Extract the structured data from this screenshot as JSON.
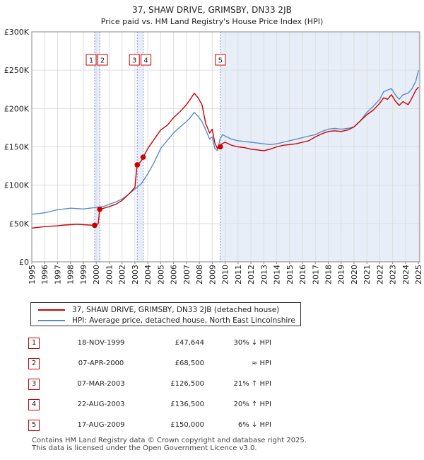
{
  "chart_data": {
    "type": "line",
    "title": "37, SHAW DRIVE, GRIMSBY, DN33 2JB",
    "subtitle": "Price paid vs. HM Land Registry's House Price Index (HPI)",
    "xlabel": "",
    "ylabel": "",
    "xlim": [
      1995,
      2025.1
    ],
    "ylim": [
      0,
      300000
    ],
    "y_ticks": [
      0,
      50000,
      100000,
      150000,
      200000,
      250000,
      300000
    ],
    "y_tick_labels": [
      "£0",
      "£50K",
      "£100K",
      "£150K",
      "£200K",
      "£250K",
      "£300K"
    ],
    "x_ticks": [
      "1995",
      "1996",
      "1997",
      "1998",
      "1999",
      "2000",
      "2001",
      "2002",
      "2003",
      "2004",
      "2005",
      "2006",
      "2007",
      "2008",
      "2009",
      "2010",
      "2011",
      "2012",
      "2013",
      "2014",
      "2015",
      "2016",
      "2017",
      "2018",
      "2019",
      "2020",
      "2021",
      "2022",
      "2023",
      "2024",
      "2025"
    ],
    "grid": true,
    "series": [
      {
        "name": "37, SHAW DRIVE, GRIMSBY, DN33 2JB (detached house)",
        "color": "#cc0000",
        "x": [
          1995.0,
          1995.5,
          1996.0,
          1996.5,
          1997.0,
          1997.5,
          1998.0,
          1998.5,
          1999.0,
          1999.5,
          1999.88,
          1999.95,
          2000.15,
          2000.27,
          2000.5,
          2001.0,
          2001.5,
          2002.0,
          2002.5,
          2003.0,
          2003.17,
          2003.3,
          2003.5,
          2003.64,
          2004.0,
          2004.5,
          2005.0,
          2005.5,
          2006.0,
          2006.5,
          2007.0,
          2007.3,
          2007.6,
          2007.9,
          2008.2,
          2008.5,
          2008.8,
          2009.0,
          2009.2,
          2009.4,
          2009.5,
          2009.63,
          2009.75,
          2010.0,
          2010.5,
          2011.0,
          2011.5,
          2012.0,
          2012.5,
          2013.0,
          2013.5,
          2014.0,
          2014.5,
          2015.0,
          2015.5,
          2016.0,
          2016.5,
          2017.0,
          2017.5,
          2018.0,
          2018.5,
          2019.0,
          2019.5,
          2020.0,
          2020.5,
          2021.0,
          2021.5,
          2022.0,
          2022.3,
          2022.6,
          2022.9,
          2023.2,
          2023.5,
          2023.8,
          2024.2,
          2024.5,
          2024.8,
          2025.0
        ],
        "values": [
          44000,
          45000,
          46000,
          46500,
          47000,
          48000,
          48500,
          49000,
          48500,
          48000,
          47644,
          49000,
          49500,
          68500,
          69500,
          72000,
          75000,
          80000,
          88000,
          97000,
          126500,
          128000,
          132000,
          136500,
          148000,
          160000,
          172000,
          178000,
          188000,
          196000,
          205000,
          212000,
          220000,
          214000,
          205000,
          180000,
          168000,
          173000,
          155000,
          148000,
          152000,
          150000,
          154000,
          156000,
          152000,
          150000,
          149000,
          147000,
          146000,
          145000,
          147000,
          150000,
          152000,
          153000,
          154000,
          156000,
          158000,
          163000,
          167000,
          170000,
          171000,
          170000,
          172000,
          176000,
          184000,
          192000,
          198000,
          207000,
          214000,
          212000,
          218000,
          210000,
          204000,
          209000,
          205000,
          214000,
          224000,
          228000
        ]
      },
      {
        "name": "HPI: Average price, detached house, North East Lincolnshire",
        "color": "#5b8cc6",
        "x": [
          1995.0,
          1995.5,
          1996.0,
          1996.5,
          1997.0,
          1997.5,
          1998.0,
          1998.5,
          1999.0,
          1999.5,
          2000.0,
          2000.5,
          2001.0,
          2001.5,
          2002.0,
          2002.5,
          2003.0,
          2003.5,
          2004.0,
          2004.5,
          2005.0,
          2005.5,
          2006.0,
          2006.5,
          2007.0,
          2007.3,
          2007.6,
          2007.9,
          2008.2,
          2008.5,
          2008.8,
          2009.0,
          2009.2,
          2009.4,
          2009.6,
          2009.8,
          2010.0,
          2010.5,
          2011.0,
          2011.5,
          2012.0,
          2012.5,
          2013.0,
          2013.5,
          2014.0,
          2014.5,
          2015.0,
          2015.5,
          2016.0,
          2016.5,
          2017.0,
          2017.5,
          2018.0,
          2018.5,
          2019.0,
          2019.5,
          2020.0,
          2020.5,
          2021.0,
          2021.5,
          2022.0,
          2022.3,
          2022.6,
          2022.9,
          2023.2,
          2023.5,
          2023.8,
          2024.2,
          2024.5,
          2024.8,
          2025.0
        ],
        "values": [
          62000,
          63000,
          64000,
          66000,
          68000,
          69000,
          70000,
          69500,
          69000,
          70000,
          71000,
          72000,
          75000,
          78000,
          82000,
          88000,
          95000,
          102000,
          115000,
          130000,
          148000,
          158000,
          168000,
          176000,
          183000,
          188000,
          195000,
          190000,
          183000,
          172000,
          160000,
          163000,
          148000,
          145000,
          160000,
          166000,
          164000,
          160000,
          158000,
          157000,
          156000,
          155000,
          154000,
          153000,
          154000,
          156000,
          158000,
          160000,
          162000,
          164000,
          166000,
          170000,
          173000,
          174000,
          173000,
          174000,
          176000,
          184000,
          195000,
          203000,
          212000,
          222000,
          224000,
          226000,
          218000,
          212000,
          218000,
          220000,
          226000,
          236000,
          250000
        ]
      }
    ],
    "transactions": [
      {
        "id": "1",
        "date": "18-NOV-1999",
        "x": 1999.88,
        "price": 47644,
        "price_label": "£47,644",
        "hpi": "30% ↓ HPI"
      },
      {
        "id": "2",
        "date": "07-APR-2000",
        "x": 2000.27,
        "price": 68500,
        "price_label": "£68,500",
        "hpi": "≈ HPI"
      },
      {
        "id": "3",
        "date": "07-MAR-2003",
        "x": 2003.18,
        "price": 126500,
        "price_label": "£126,500",
        "hpi": "21% ↑ HPI"
      },
      {
        "id": "4",
        "date": "22-AUG-2003",
        "x": 2003.64,
        "price": 136500,
        "price_label": "£136,500",
        "hpi": "20% ↑ HPI"
      },
      {
        "id": "5",
        "date": "17-AUG-2009",
        "x": 2009.63,
        "price": 150000,
        "price_label": "£150,000",
        "hpi": "6% ↓ HPI"
      }
    ],
    "shaded_ranges": [
      [
        1999.88,
        2000.27
      ],
      [
        2003.18,
        2003.64
      ],
      [
        2009.63,
        2025.1
      ]
    ],
    "colors": {
      "price_line": "#cc0000",
      "hpi_line": "#5b8cc6",
      "shade": "#e8eef8",
      "vline": "#8888dd",
      "grid": "#dddddd"
    }
  },
  "legend": {
    "price_label": "37, SHAW DRIVE, GRIMSBY, DN33 2JB (detached house)",
    "hpi_label": "HPI: Average price, detached house, North East Lincolnshire"
  },
  "footer": {
    "line1": "Contains HM Land Registry data © Crown copyright and database right 2025.",
    "line2": "This data is licensed under the Open Government Licence v3.0."
  }
}
